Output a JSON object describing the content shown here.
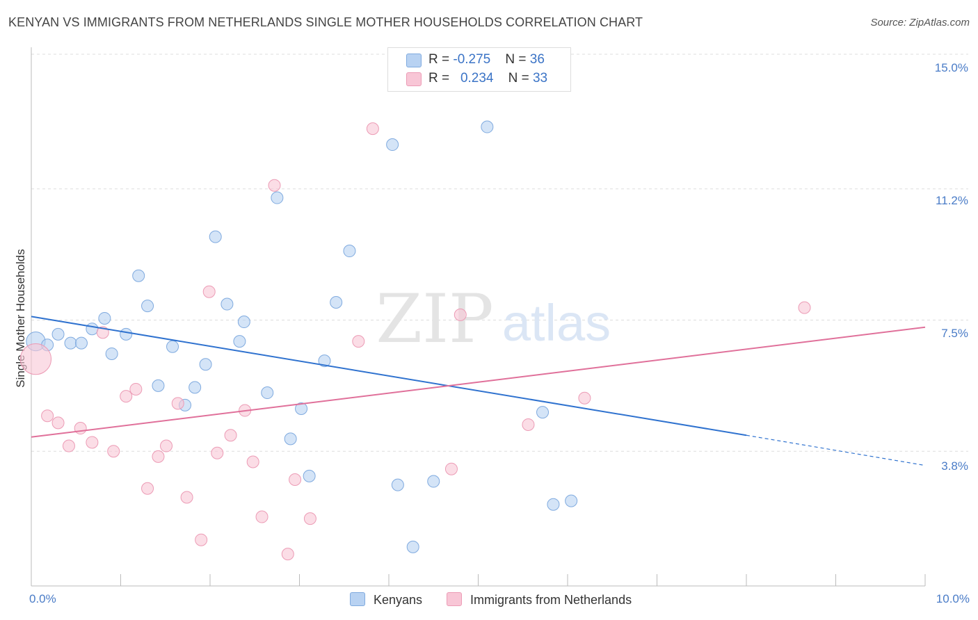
{
  "title": "KENYAN VS IMMIGRANTS FROM NETHERLANDS SINGLE MOTHER HOUSEHOLDS CORRELATION CHART",
  "source": "Source: ZipAtlas.com",
  "watermark": {
    "zip": "ZIP",
    "atlas": "atlas"
  },
  "colors": {
    "blue_fill": "#b8d2f2",
    "blue_stroke": "#7faadf",
    "blue_line": "#2f72cf",
    "pink_fill": "#f8c6d6",
    "pink_stroke": "#ec9bb5",
    "pink_line": "#e0709a",
    "tick_text": "#4a7cc7",
    "grid": "#dddddd"
  },
  "legend_top": [
    {
      "r_label": "R = ",
      "r_value": "-0.275",
      "n_label": "N = ",
      "n_value": "36"
    },
    {
      "r_label": "R = ",
      "r_value": "0.234",
      "n_label": "N = ",
      "n_value": "33"
    }
  ],
  "chart_data": {
    "type": "scatter",
    "title": "KENYAN VS IMMIGRANTS FROM NETHERLANDS SINGLE MOTHER HOUSEHOLDS CORRELATION CHART",
    "xlabel": "",
    "ylabel": "Single Mother Households",
    "xlim": [
      0,
      10
    ],
    "ylim": [
      0,
      15
    ],
    "x_ticks_labels": [
      "0.0%",
      "10.0%"
    ],
    "y_ticks": [
      3.8,
      7.5,
      11.2,
      15.0
    ],
    "y_tick_labels": [
      "3.8%",
      "7.5%",
      "11.2%",
      "15.0%"
    ],
    "grid": "horizontal dashed",
    "legend_placement": "bottom-center",
    "series": [
      {
        "name": "Kenyans",
        "color": "#b8d2f2",
        "points": [
          [
            0.05,
            6.9,
            1.6
          ],
          [
            0.18,
            6.8,
            1
          ],
          [
            0.3,
            7.1,
            1
          ],
          [
            0.44,
            6.85,
            1
          ],
          [
            0.56,
            6.85,
            1
          ],
          [
            0.68,
            7.25,
            1
          ],
          [
            0.82,
            7.55,
            1
          ],
          [
            0.9,
            6.55,
            1
          ],
          [
            1.06,
            7.1,
            1
          ],
          [
            1.2,
            8.75,
            1
          ],
          [
            1.3,
            7.9,
            1
          ],
          [
            1.42,
            5.65,
            1
          ],
          [
            1.58,
            6.75,
            1
          ],
          [
            1.72,
            5.1,
            1
          ],
          [
            1.83,
            5.6,
            1
          ],
          [
            1.95,
            6.25,
            1
          ],
          [
            2.06,
            9.85,
            1
          ],
          [
            2.19,
            7.95,
            1
          ],
          [
            2.33,
            6.9,
            1
          ],
          [
            2.38,
            7.45,
            1
          ],
          [
            2.64,
            5.45,
            1
          ],
          [
            2.75,
            10.95,
            1
          ],
          [
            2.9,
            4.15,
            1
          ],
          [
            3.02,
            5.0,
            1
          ],
          [
            3.11,
            3.1,
            1
          ],
          [
            3.28,
            6.35,
            1
          ],
          [
            3.41,
            8.0,
            1
          ],
          [
            3.56,
            9.45,
            1
          ],
          [
            4.04,
            12.45,
            1
          ],
          [
            4.1,
            2.85,
            1
          ],
          [
            4.27,
            1.1,
            1
          ],
          [
            4.5,
            2.95,
            1
          ],
          [
            5.1,
            12.95,
            1
          ],
          [
            5.72,
            4.9,
            1
          ],
          [
            5.84,
            2.3,
            1
          ],
          [
            6.04,
            2.4,
            1
          ]
        ]
      },
      {
        "name": "Immigrants from Netherlands",
        "color": "#f8c6d6",
        "points": [
          [
            0.05,
            6.4,
            2.6
          ],
          [
            0.18,
            4.8,
            1
          ],
          [
            0.3,
            4.6,
            1
          ],
          [
            0.42,
            3.95,
            1
          ],
          [
            0.55,
            4.45,
            1
          ],
          [
            0.68,
            4.05,
            1
          ],
          [
            0.8,
            7.15,
            1
          ],
          [
            0.92,
            3.8,
            1
          ],
          [
            1.06,
            5.35,
            1
          ],
          [
            1.17,
            5.55,
            1
          ],
          [
            1.3,
            2.75,
            1
          ],
          [
            1.42,
            3.65,
            1
          ],
          [
            1.51,
            3.95,
            1
          ],
          [
            1.64,
            5.15,
            1
          ],
          [
            1.74,
            2.5,
            1
          ],
          [
            1.9,
            1.3,
            1
          ],
          [
            1.99,
            8.3,
            1
          ],
          [
            2.08,
            3.75,
            1
          ],
          [
            2.23,
            4.25,
            1
          ],
          [
            2.39,
            4.95,
            1
          ],
          [
            2.48,
            3.5,
            1
          ],
          [
            2.58,
            1.95,
            1
          ],
          [
            2.72,
            11.3,
            1
          ],
          [
            2.87,
            0.9,
            1
          ],
          [
            2.95,
            3.0,
            1
          ],
          [
            3.12,
            1.9,
            1
          ],
          [
            3.66,
            6.9,
            1
          ],
          [
            3.82,
            12.9,
            1
          ],
          [
            4.7,
            3.3,
            1
          ],
          [
            4.8,
            7.65,
            1
          ],
          [
            5.56,
            4.55,
            1
          ],
          [
            6.19,
            5.3,
            1
          ],
          [
            8.65,
            7.85,
            1
          ]
        ]
      }
    ],
    "trendlines": [
      {
        "series": "Kenyans",
        "x0": 0,
        "y0": 7.6,
        "x1": 8.0,
        "y1": 4.25,
        "x_dash_end": 10,
        "y_dash_end": 3.4
      },
      {
        "series": "Immigrants from Netherlands",
        "x0": 0,
        "y0": 4.2,
        "x1": 10,
        "y1": 7.3
      }
    ]
  },
  "legend_bottom": [
    "Kenyans",
    "Immigrants from Netherlands"
  ]
}
